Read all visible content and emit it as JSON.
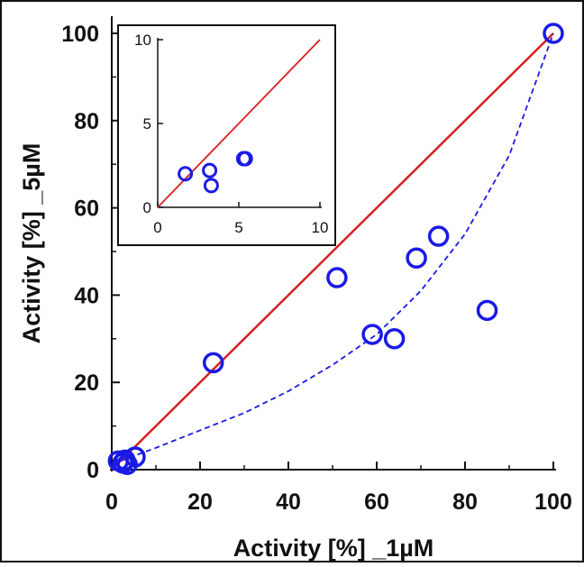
{
  "chart_data": [
    {
      "type": "scatter",
      "xlabel": "Activity [%] _1µM",
      "ylabel": "Activity [%] _5µM",
      "xlim": [
        0,
        100
      ],
      "ylim": [
        0,
        100
      ],
      "x_ticks": [
        "0",
        "20",
        "40",
        "60",
        "80",
        "100"
      ],
      "y_ticks": [
        "0",
        "20",
        "40",
        "60",
        "80",
        "100"
      ],
      "grid": false,
      "colors": {
        "points": "#1a1ae6",
        "identity_line": "#d62020",
        "trend_curve": "#1a1ae6"
      },
      "series": [
        {
          "marker": "open-circle",
          "points": [
            {
              "x": 1.5,
              "y": 2
            },
            {
              "x": 2.5,
              "y": 1.5
            },
            {
              "x": 3.5,
              "y": 1.2
            },
            {
              "x": 3.0,
              "y": 2.2
            },
            {
              "x": 5.3,
              "y": 2.9
            },
            {
              "x": 23,
              "y": 24.5
            },
            {
              "x": 51,
              "y": 44
            },
            {
              "x": 59,
              "y": 31
            },
            {
              "x": 64,
              "y": 30
            },
            {
              "x": 69,
              "y": 48.5
            },
            {
              "x": 74,
              "y": 53.5
            },
            {
              "x": 85,
              "y": 36.5
            },
            {
              "x": 100,
              "y": 100
            }
          ]
        }
      ],
      "identity_line": {
        "style": "solid",
        "from": [
          0,
          0
        ],
        "to": [
          100,
          100
        ]
      },
      "trend_curve": {
        "style": "dashed",
        "points": [
          [
            2,
            2
          ],
          [
            10,
            5
          ],
          [
            20,
            9
          ],
          [
            30,
            13
          ],
          [
            40,
            18
          ],
          [
            50,
            24
          ],
          [
            60,
            31
          ],
          [
            70,
            41
          ],
          [
            80,
            54
          ],
          [
            90,
            72
          ],
          [
            100,
            100
          ]
        ]
      }
    },
    {
      "type": "scatter",
      "role": "inset",
      "xlim": [
        0,
        10
      ],
      "ylim": [
        0,
        10
      ],
      "x_ticks": [
        "0",
        "5",
        "10"
      ],
      "y_ticks": [
        "0",
        "5",
        "10"
      ],
      "points": [
        {
          "x": 1.7,
          "y": 2.0
        },
        {
          "x": 3.2,
          "y": 2.2
        },
        {
          "x": 3.3,
          "y": 1.3
        },
        {
          "x": 5.3,
          "y": 2.9
        },
        {
          "x": 5.4,
          "y": 2.9
        }
      ],
      "identity_line": {
        "style": "solid",
        "from": [
          0,
          0
        ],
        "to": [
          10,
          10
        ]
      }
    }
  ]
}
